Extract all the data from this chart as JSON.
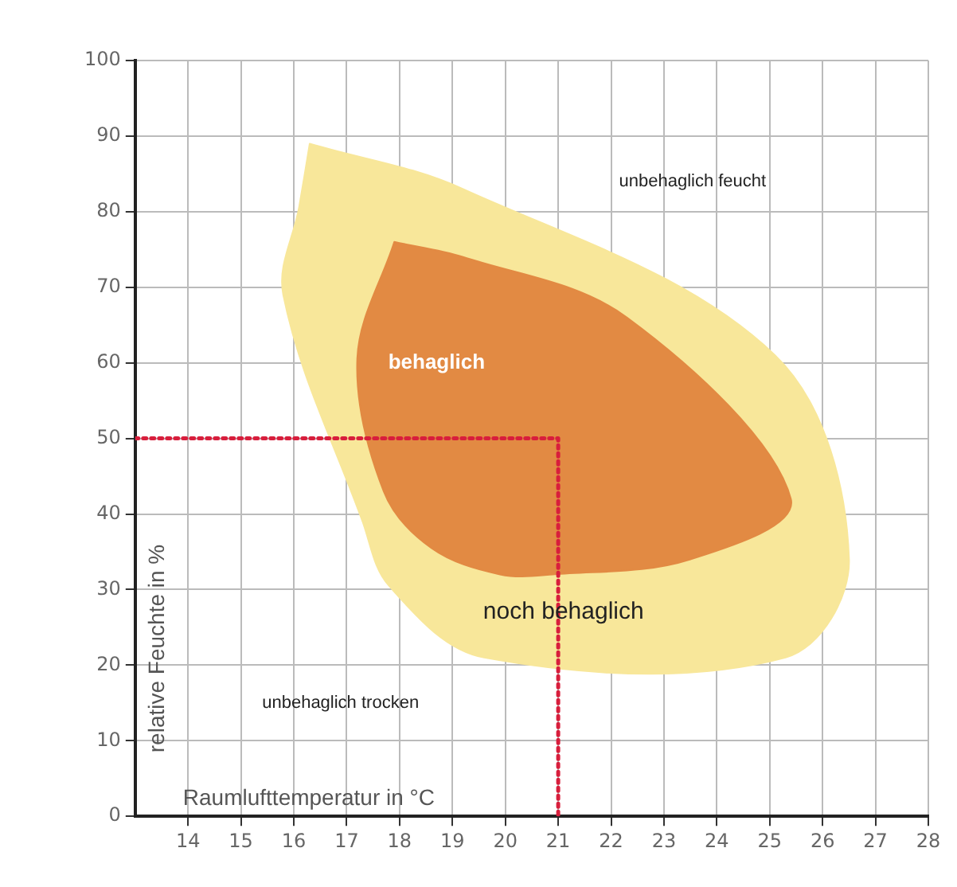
{
  "chart_data": {
    "type": "area",
    "xlabel": "Raumlufttemperatur in °C",
    "ylabel": "relative Feuchte in %",
    "xlim": [
      13,
      28
    ],
    "xticks": [
      14,
      15,
      16,
      17,
      18,
      19,
      20,
      21,
      22,
      23,
      24,
      25,
      26,
      27,
      28
    ],
    "ylim": [
      0,
      100
    ],
    "yticks": [
      0,
      10,
      20,
      30,
      40,
      50,
      60,
      70,
      80,
      90,
      100
    ],
    "grid": true,
    "legend": false,
    "series": [
      {
        "name": "noch behaglich",
        "color": "#f8e79a",
        "x": [
          16.3,
          19.2,
          25.1,
          26.5,
          25.3,
          19.6,
          17.8,
          17.3,
          15.8,
          16.1,
          16.3
        ],
        "values": [
          89,
          83,
          61,
          34,
          21,
          21,
          30.5,
          39,
          69,
          80.6,
          89
        ]
      },
      {
        "name": "behaglich",
        "color": "#e28a43",
        "x": [
          17.9,
          19.2,
          22.3,
          25.4,
          23.5,
          20.9,
          19.9,
          18.6,
          17.7,
          17.2,
          17.9
        ],
        "values": [
          76,
          74,
          66,
          42,
          34,
          32,
          32,
          35.5,
          43,
          60.6,
          76
        ]
      },
      {
        "type": "line",
        "line_style": "dotted",
        "marker": "none",
        "color": "#d81e3c",
        "x": [
          13,
          21,
          21
        ],
        "values": [
          50,
          50,
          0
        ]
      }
    ],
    "annotations": [
      "unbehaglich feucht",
      "unbehaglich trocken"
    ]
  }
}
